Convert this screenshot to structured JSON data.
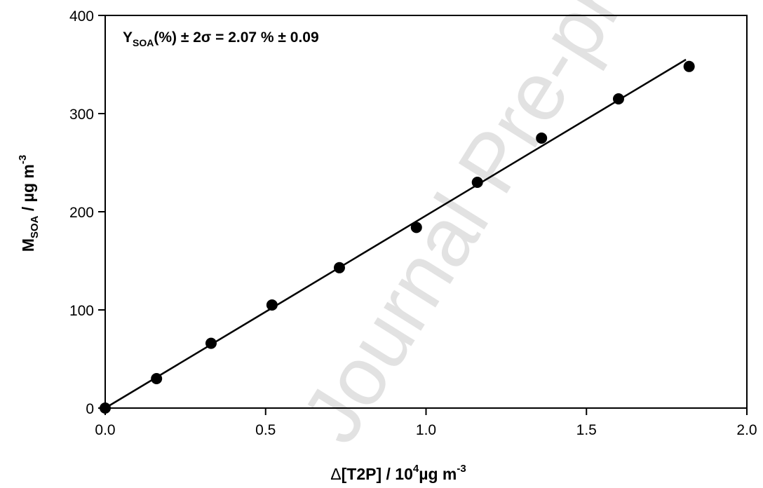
{
  "chart_data": {
    "type": "scatter",
    "xlabel": {
      "delta": "Δ",
      "main": "[T2P] / 10",
      "sup1": "4",
      "mid": "µg m",
      "sup2": "-3"
    },
    "ylabel": {
      "main": "M",
      "sub": "SOA",
      "mid": " / µg m",
      "sup": "-3"
    },
    "xlim": [
      0.0,
      2.0
    ],
    "ylim": [
      0,
      400
    ],
    "xticks": [
      "0.0",
      "0.5",
      "1.0",
      "1.5",
      "2.0"
    ],
    "yticks": [
      "0",
      "100",
      "200",
      "300",
      "400"
    ],
    "xtick_values": [
      0.0,
      0.5,
      1.0,
      1.5,
      2.0
    ],
    "ytick_values": [
      0,
      100,
      200,
      300,
      400
    ],
    "grid": false,
    "series": [
      {
        "x": [
          0.0,
          0.16,
          0.33,
          0.52,
          0.73,
          0.97,
          1.16,
          1.36,
          1.6,
          1.82
        ],
        "y": [
          0,
          30,
          66,
          105,
          143,
          184,
          230,
          275,
          315,
          348
        ],
        "marker": "filled-circle",
        "color": "#000000"
      }
    ],
    "fit_line": {
      "x": [
        0.0,
        1.81
      ],
      "y": [
        0,
        355
      ],
      "color": "#000000"
    },
    "annotation": {
      "prefix": "Y",
      "sub": "SOA",
      "rest": "(%) ± 2σ = 2.07 % ± 0.09"
    }
  },
  "watermark": "Journal Pre-proof"
}
